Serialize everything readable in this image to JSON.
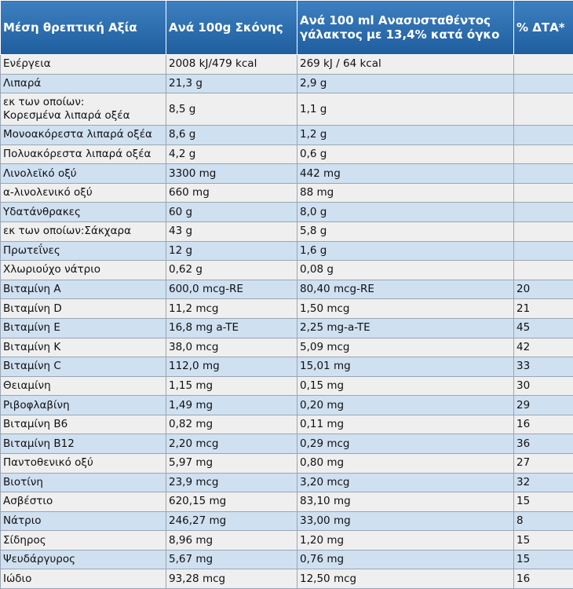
{
  "table": {
    "header": [
      "Μέση θρεπτική Αξία",
      "Ανά 100g Σκόνης",
      "Ανά 100 ml Ανασυσταθέντος γάλακτος με 13,4% κατά όγκο",
      "% ΔΤΑ*"
    ],
    "rows": [
      [
        "Ενέργεια",
        "2008 kJ/479 kcal",
        "269 kJ / 64 kcal"
      ],
      [
        "Λιπαρά",
        "21,3 g",
        "2,9 g"
      ],
      [
        "εκ των οποίων:\nΚορεσμένα λιπαρά οξέα",
        "8,5 g",
        "1,1 g"
      ],
      [
        "Μονοακόρεστα λιπαρά οξέα",
        "8,6 g",
        "1,2 g"
      ],
      [
        "Πολυακόρεστα λιπαρά οξέα",
        "4,2 g",
        "0,6 g"
      ],
      [
        "Λινολεϊκό οξύ",
        "3300 mg",
        "442 mg"
      ],
      [
        "α-λινολενικό οξύ",
        "660 mg",
        "88 mg"
      ],
      [
        "Υδατάνθρακες",
        "60 g",
        "8,0 g"
      ],
      [
        "εκ των οποίων:Σάκχαρα",
        "43 g",
        "5,8 g"
      ],
      [
        "Πρωτεΐνες",
        "12 g",
        "1,6 g"
      ],
      [
        "Χλωριούχο νάτριο",
        "0,62 g",
        "0,08 g"
      ],
      [
        "Βιταμίνη A",
        "600,0 mcg-RE",
        "80,40 mcg-RE",
        "20"
      ],
      [
        "Βιταμίνη D",
        "11,2 mcg",
        "1,50 mcg",
        "21"
      ],
      [
        "Βιταμίνη E",
        "16,8 mg a-TE",
        "2,25 mg-a-TE",
        "45"
      ],
      [
        "Βιταμίνη K",
        "38,0 mcg",
        "5,09 mcg",
        "42"
      ],
      [
        "Βιταμίνη C",
        "112,0 mg",
        "15,01 mg",
        "33"
      ],
      [
        "Θειαμίνη",
        "1,15 mg",
        "0,15 mg",
        "30"
      ],
      [
        "Ριβοφλαβίνη",
        "1,49 mg",
        "0,20 mg",
        "29"
      ],
      [
        "Βιταμίνη B6",
        "0,82 mg",
        "0,11 mg",
        "16"
      ],
      [
        "Βιταμίνη B12",
        "2,20 mcg",
        "0,29 mcg",
        "36"
      ],
      [
        "Παντοθενικό οξύ",
        "5,97 mg",
        "0,80 mg",
        "27"
      ],
      [
        "Βιοτίνη",
        "23,9 mcg",
        "3,20 mcg",
        "32"
      ],
      [
        "Ασβέστιο",
        "620,15 mg",
        "83,10 mg",
        "15"
      ],
      [
        "Νάτριο",
        "246,27 mg",
        "33,00 mg",
        "8"
      ],
      [
        "Σίδηρος",
        "8,96 mg",
        "1,20 mg",
        "15"
      ],
      [
        "Ψευδάργυρος",
        "5,67 mg",
        "0,76 mg",
        "15"
      ],
      [
        "Ιώδιο",
        "93,28 mcg",
        "12,50 mcg",
        "16"
      ]
    ]
  }
}
